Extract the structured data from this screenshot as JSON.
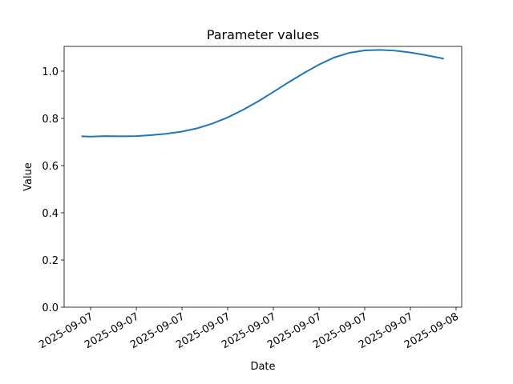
{
  "chart_data": {
    "type": "line",
    "title": "Parameter values",
    "x_label": "Date",
    "y_label": "Value",
    "x": [
      -0.6,
      0,
      1,
      2,
      3,
      4,
      5,
      6,
      7,
      8,
      9,
      10,
      11,
      12,
      13,
      14,
      15,
      16,
      17,
      18,
      19,
      20,
      21,
      22,
      23.2
    ],
    "series": [
      {
        "name": "Value",
        "color": "#1f77b4",
        "values": [
          0.724,
          0.723,
          0.725,
          0.724,
          0.725,
          0.729,
          0.735,
          0.744,
          0.758,
          0.778,
          0.804,
          0.836,
          0.872,
          0.912,
          0.953,
          0.992,
          1.028,
          1.058,
          1.078,
          1.088,
          1.09,
          1.087,
          1.079,
          1.068,
          1.053
        ]
      }
    ],
    "xlim": [
      -1.74,
      24.37
    ],
    "xticks": [
      {
        "value": 0,
        "label": "2025-09-07"
      },
      {
        "value": 3,
        "label": "2025-09-07"
      },
      {
        "value": 6,
        "label": "2025-09-07"
      },
      {
        "value": 9,
        "label": "2025-09-07"
      },
      {
        "value": 12,
        "label": "2025-09-07"
      },
      {
        "value": 15,
        "label": "2025-09-07"
      },
      {
        "value": 18,
        "label": "2025-09-07"
      },
      {
        "value": 21,
        "label": "2025-09-07"
      },
      {
        "value": 24,
        "label": "2025-09-08"
      }
    ],
    "ylim": [
      0,
      1.105
    ],
    "yticks": [
      {
        "value": 0,
        "label": "0.0"
      },
      0.2,
      0.4,
      0.6,
      0.8,
      {
        "value": 1,
        "label": "1.0"
      }
    ],
    "grid": false
  }
}
